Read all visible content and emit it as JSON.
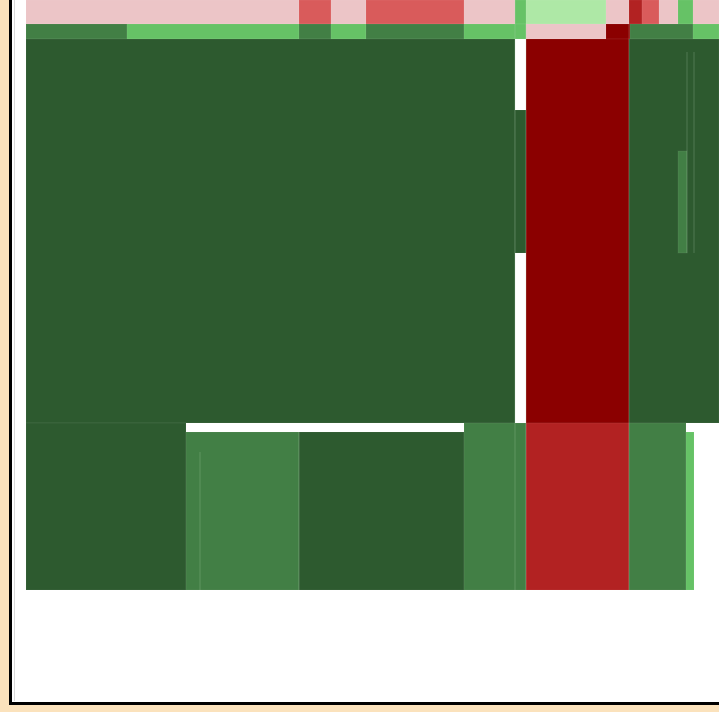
{
  "chart_data": {
    "type": "heatmap",
    "title": "",
    "xlabel": "",
    "ylabel": "",
    "legend": "none",
    "grid": false,
    "color_scale": {
      "strong_negative": "#8b0000",
      "negative": "#b22222",
      "mild_negative": "#d95b5b",
      "light_negative": "#ecc5c7",
      "neutral_dark": "#2d5a2f",
      "mild_positive": "#427f45",
      "positive": "#66c266",
      "light_positive": "#aee8a6"
    },
    "rows": [
      {
        "name": "",
        "cells": [
          {
            "value": 0.15,
            "color": "#ecc5c7"
          },
          {
            "value": -0.45,
            "color": "#d95b5b"
          },
          {
            "value": 0.15,
            "color": "#ecc5c7"
          },
          {
            "value": -0.45,
            "color": "#d95b5b"
          },
          {
            "value": 0.15,
            "color": "#ecc5c7"
          },
          {
            "value": 0.7,
            "color": "#66c266"
          },
          {
            "value": 0.9,
            "color": "#aee8a6"
          },
          {
            "value": -0.2,
            "color": "#ecc5c7"
          },
          {
            "value": -0.75,
            "color": "#b22222"
          },
          {
            "value": -0.45,
            "color": "#d95b5b"
          },
          {
            "value": 0.15,
            "color": "#ecc5c7"
          },
          {
            "value": 0.7,
            "color": "#66c266"
          },
          {
            "value": 0.15,
            "color": "#ecc5c7"
          }
        ]
      },
      {
        "name": "",
        "cells": [
          {
            "value": 0.45,
            "color": "#427f45"
          },
          {
            "value": 0.7,
            "color": "#66c266"
          },
          {
            "value": 0.45,
            "color": "#427f45"
          },
          {
            "value": 0.7,
            "color": "#66c266"
          },
          {
            "value": 0.45,
            "color": "#427f45"
          },
          {
            "value": 0.7,
            "color": "#66c266"
          },
          {
            "value": -0.2,
            "color": "#ecc5c7"
          },
          {
            "value": -0.95,
            "color": "#8b0000"
          },
          {
            "value": 0.45,
            "color": "#427f45"
          },
          {
            "value": 0.7,
            "color": "#66c266"
          }
        ]
      },
      {
        "name": "",
        "cells": [
          {
            "value": 0.2,
            "color": "#2d5a2f"
          },
          {
            "value": 0.2,
            "color": "#2d5a2f"
          },
          {
            "value": -0.95,
            "color": "#8b0000"
          },
          {
            "value": 0.2,
            "color": "#2d5a2f"
          },
          {
            "value": 0.45,
            "color": "#427f45"
          }
        ]
      },
      {
        "name": "",
        "cells": [
          {
            "value": 0.2,
            "color": "#2d5a2f"
          },
          {
            "value": 0.45,
            "color": "#427f45"
          },
          {
            "value": 0.2,
            "color": "#2d5a2f"
          },
          {
            "value": 0.45,
            "color": "#427f45"
          },
          {
            "value": -0.75,
            "color": "#b22222"
          },
          {
            "value": 0.45,
            "color": "#427f45"
          },
          {
            "value": 0.7,
            "color": "#66c266"
          }
        ]
      }
    ]
  }
}
